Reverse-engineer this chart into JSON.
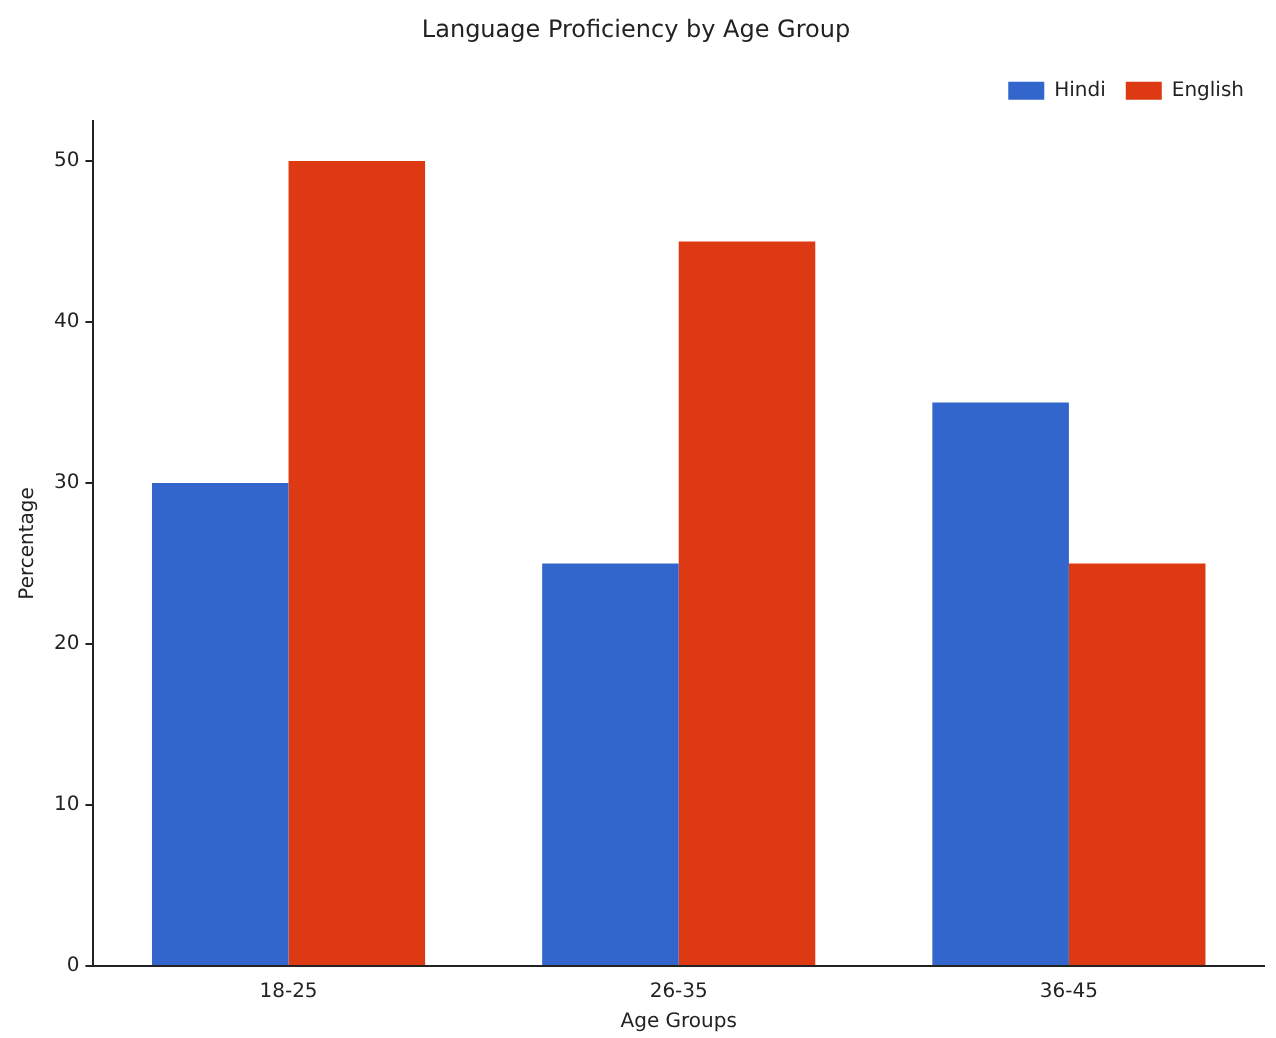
{
  "chart_data": {
    "type": "bar",
    "title": "Language Proficiency by Age Group",
    "xlabel": "Age Groups",
    "ylabel": "Percentage",
    "categories": [
      "18-25",
      "26-35",
      "36-45"
    ],
    "series": [
      {
        "name": "Hindi",
        "color": "#3366cc",
        "values": [
          30,
          25,
          35
        ]
      },
      {
        "name": "English",
        "color": "#dd3a13",
        "values": [
          50,
          45,
          25
        ]
      }
    ],
    "ylim": [
      0,
      52.5
    ],
    "yticks": [
      0,
      10,
      20,
      30,
      40,
      50
    ],
    "grid": false,
    "legend": "top right"
  }
}
